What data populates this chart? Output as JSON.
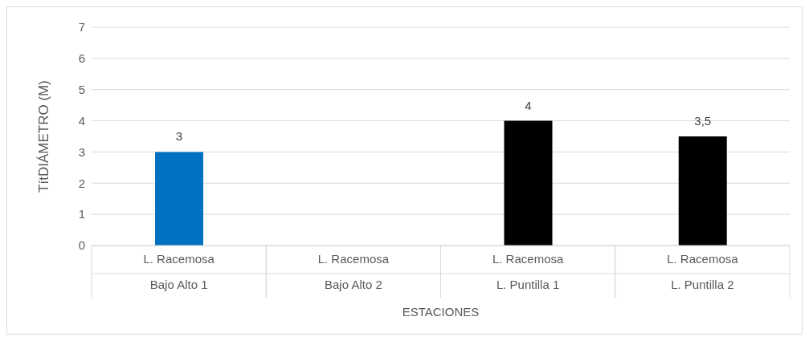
{
  "chart_data": {
    "type": "bar",
    "categories": [
      "L. Racemosa\nBajo Alto 1",
      "L. Racemosa\nBajo Alto 2",
      "L. Racemosa\nL. Puntilla 1",
      "L. Racemosa\nL. Puntilla 2"
    ],
    "values": [
      3,
      null,
      4,
      3.5
    ],
    "colors": [
      "#0070c0",
      "#000000",
      "#000000",
      "#000000"
    ],
    "value_labels": [
      "3",
      null,
      "4",
      "3,5"
    ],
    "xlabel": "ESTACIONES",
    "ylabel": "TítDIÁMETRO (M)",
    "ylim": [
      0,
      7
    ],
    "yticks": [
      0,
      1,
      2,
      3,
      4,
      5,
      6,
      7
    ],
    "grid": "y"
  }
}
